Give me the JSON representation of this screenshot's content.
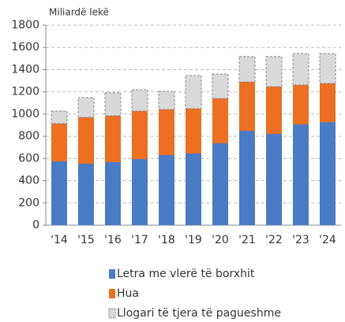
{
  "chart_data": {
    "type": "stacked_bar",
    "y_axis_label": "Miliardë lekë",
    "categories": [
      "'14",
      "'15",
      "'16",
      "'17",
      "'18",
      "'19",
      "'20",
      "'21",
      "'22",
      "'23",
      "'24"
    ],
    "series": [
      {
        "name": "Letra me vlerë të borxhit",
        "color": "#4a7cc5",
        "values": [
          574,
          553,
          567,
          595,
          631,
          645,
          737,
          850,
          822,
          907,
          928
        ]
      },
      {
        "name": "Hua",
        "color": "#ec6f22",
        "values": [
          340,
          418,
          418,
          433,
          411,
          404,
          404,
          440,
          425,
          355,
          348
        ]
      },
      {
        "name": "Llogari të tjera të pagueshme",
        "color": "#d9d9d9",
        "values": [
          114,
          177,
          206,
          191,
          163,
          298,
          220,
          227,
          270,
          283,
          269
        ]
      }
    ],
    "ylim": [
      0,
      1800
    ],
    "yticks": [
      0,
      200,
      400,
      600,
      800,
      1000,
      1200,
      1400,
      1600,
      1800
    ],
    "grid": true
  }
}
